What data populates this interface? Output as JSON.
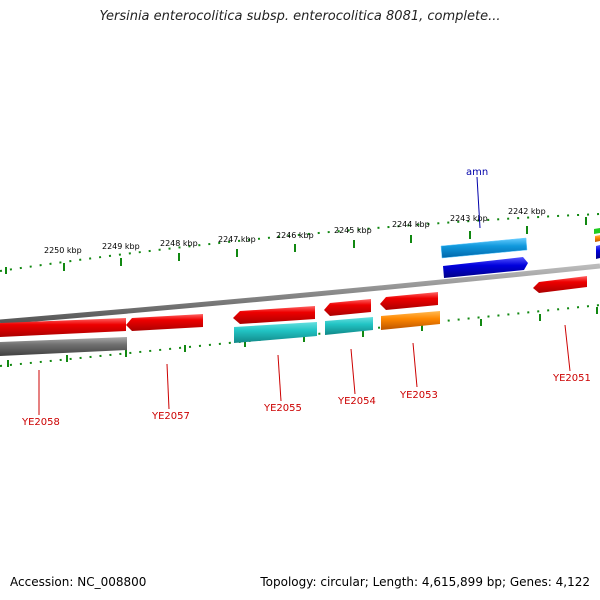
{
  "title": "Yersinia enterocolitica subsp. enterocolitica 8081, complete...",
  "footer": {
    "accession": "Accession: NC_008800",
    "stats": "Topology: circular; Length: 4,615,899 bp; Genes: 4,122"
  },
  "colors": {
    "cds_red": "#ee1111",
    "cds_cyan": "#22cccc",
    "cds_orange": "#ff8800",
    "cds_blue": "#1199dd",
    "cds_darkblue": "#0000dd",
    "gray_feature": "#707070",
    "backbone": "#888888",
    "tick": "#118811",
    "label_red": "#cc0000",
    "label_blue": "#0000aa"
  },
  "kbp_ticks": [
    "2250 kbp",
    "2249 kbp",
    "2248 kbp",
    "2247 kbp",
    "2246 kbp",
    "2245 kbp",
    "2244 kbp",
    "2243 kbp",
    "2242 kbp"
  ],
  "gene_labels": [
    "YE2058",
    "YE2057",
    "YE2055",
    "YE2054",
    "YE2053",
    "amn",
    "YE2051"
  ]
}
